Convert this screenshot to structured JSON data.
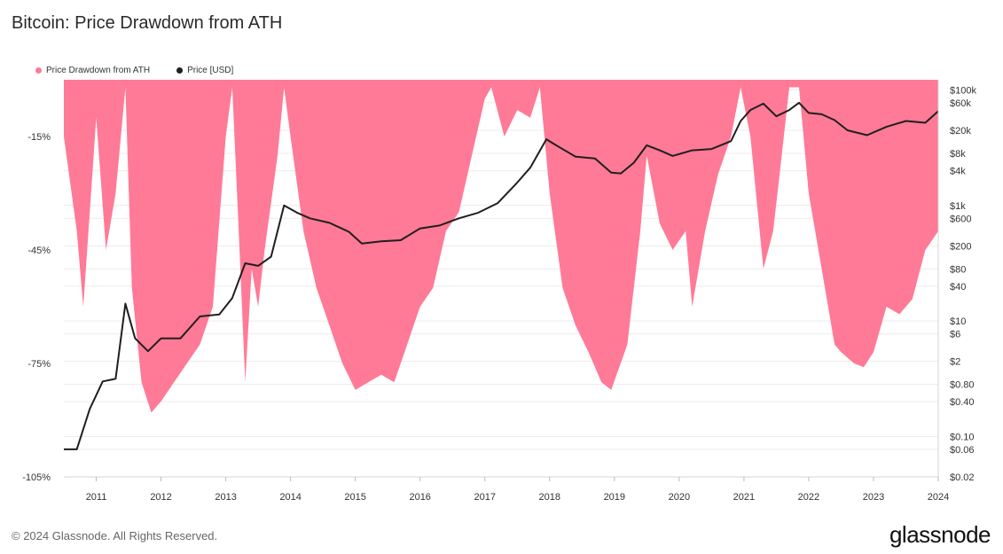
{
  "title": "Bitcoin: Price Drawdown from ATH",
  "footer": "© 2024 Glassnode. All Rights Reserved.",
  "brand": "glassnode",
  "legend": [
    {
      "label": "Price Drawdown from ATH",
      "color": "#ff7a96"
    },
    {
      "label": "Price [USD]",
      "color": "#1f1f1f"
    }
  ],
  "chart_data": {
    "type": "area",
    "x_ticks": [
      "2011",
      "2012",
      "2013",
      "2014",
      "2015",
      "2016",
      "2017",
      "2018",
      "2019",
      "2020",
      "2021",
      "2022",
      "2023",
      "2024"
    ],
    "y_left_ticks": [
      "-15%",
      "-45%",
      "-75%",
      "-105%"
    ],
    "y_left_range": [
      -105,
      0
    ],
    "y_right_ticks": [
      "$100k",
      "$60k",
      "$20k",
      "$8k",
      "$4k",
      "$1k",
      "$600",
      "$200",
      "$80",
      "$40",
      "$10",
      "$6",
      "$2",
      "$0.80",
      "$0.40",
      "$0.10",
      "$0.06",
      "$0.02"
    ],
    "y_right_scale": "log",
    "y_right_range": [
      0.02,
      150000
    ],
    "x_range": [
      2010.5,
      2024.0
    ],
    "grid": true,
    "series": [
      {
        "name": "Price Drawdown from ATH",
        "color": "#ff7a96",
        "x": [
          2010.5,
          2010.7,
          2010.8,
          2011.0,
          2011.15,
          2011.3,
          2011.45,
          2011.55,
          2011.7,
          2011.85,
          2012.0,
          2012.2,
          2012.4,
          2012.6,
          2012.8,
          2013.0,
          2013.1,
          2013.2,
          2013.3,
          2013.4,
          2013.5,
          2013.6,
          2013.8,
          2013.9,
          2014.0,
          2014.2,
          2014.4,
          2014.6,
          2014.8,
          2015.0,
          2015.2,
          2015.4,
          2015.6,
          2015.8,
          2016.0,
          2016.2,
          2016.4,
          2016.6,
          2016.8,
          2017.0,
          2017.1,
          2017.3,
          2017.5,
          2017.7,
          2017.85,
          2018.0,
          2018.2,
          2018.4,
          2018.6,
          2018.8,
          2018.95,
          2019.2,
          2019.4,
          2019.5,
          2019.7,
          2019.9,
          2020.1,
          2020.2,
          2020.4,
          2020.6,
          2020.8,
          2020.95,
          2021.1,
          2021.3,
          2021.45,
          2021.55,
          2021.7,
          2021.85,
          2022.0,
          2022.2,
          2022.4,
          2022.5,
          2022.7,
          2022.85,
          2023.0,
          2023.2,
          2023.4,
          2023.6,
          2023.8,
          2024.0
        ],
        "values": [
          -15,
          -40,
          -60,
          -10,
          -45,
          -30,
          -2,
          -55,
          -80,
          -88,
          -85,
          -80,
          -75,
          -70,
          -60,
          -15,
          -2,
          -40,
          -80,
          -50,
          -60,
          -45,
          -20,
          -2,
          -15,
          -40,
          -55,
          -65,
          -75,
          -82,
          -80,
          -78,
          -80,
          -70,
          -60,
          -55,
          -40,
          -35,
          -20,
          -5,
          -2,
          -15,
          -8,
          -10,
          -2,
          -30,
          -55,
          -65,
          -72,
          -80,
          -82,
          -70,
          -40,
          -20,
          -38,
          -45,
          -40,
          -60,
          -40,
          -25,
          -15,
          -2,
          -15,
          -50,
          -40,
          -25,
          -2,
          -2,
          -30,
          -50,
          -70,
          -72,
          -75,
          -76,
          -72,
          -60,
          -62,
          -58,
          -45,
          -40
        ]
      },
      {
        "name": "Price [USD]",
        "color": "#1f1f1f",
        "x": [
          2010.5,
          2010.7,
          2010.9,
          2011.1,
          2011.3,
          2011.45,
          2011.6,
          2011.8,
          2012.0,
          2012.3,
          2012.6,
          2012.9,
          2013.1,
          2013.3,
          2013.5,
          2013.7,
          2013.9,
          2014.1,
          2014.3,
          2014.6,
          2014.9,
          2015.1,
          2015.4,
          2015.7,
          2016.0,
          2016.3,
          2016.6,
          2016.9,
          2017.2,
          2017.5,
          2017.7,
          2017.95,
          2018.1,
          2018.4,
          2018.7,
          2018.95,
          2019.1,
          2019.3,
          2019.5,
          2019.7,
          2019.9,
          2020.2,
          2020.5,
          2020.8,
          2020.95,
          2021.1,
          2021.3,
          2021.5,
          2021.7,
          2021.85,
          2022.0,
          2022.2,
          2022.4,
          2022.6,
          2022.9,
          2023.2,
          2023.5,
          2023.8,
          2024.0
        ],
        "values": [
          0.06,
          0.06,
          0.3,
          0.9,
          1.0,
          20,
          5,
          3,
          5,
          5,
          12,
          13,
          25,
          100,
          90,
          130,
          1000,
          750,
          600,
          500,
          350,
          220,
          240,
          250,
          400,
          450,
          600,
          750,
          1100,
          2500,
          4500,
          14000,
          11000,
          7000,
          6500,
          3700,
          3600,
          5500,
          11000,
          9000,
          7200,
          9000,
          9500,
          13000,
          29000,
          45000,
          58000,
          35000,
          45000,
          60000,
          40000,
          38000,
          30000,
          20000,
          16500,
          23000,
          29000,
          27000,
          43000
        ]
      }
    ]
  }
}
